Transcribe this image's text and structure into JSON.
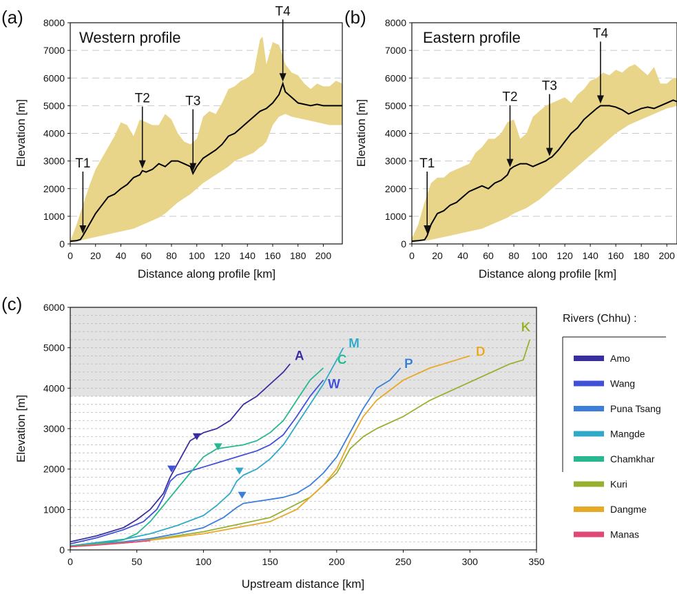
{
  "panels": {
    "a": {
      "letter": "(a)",
      "title": "Western profile",
      "xlabel": "Distance along profile [km]",
      "ylabel": "Elevation [m]",
      "xticks": [
        "0",
        "20",
        "40",
        "60",
        "80",
        "100",
        "120",
        "140",
        "160",
        "180",
        "200"
      ],
      "yticks": [
        "0",
        "1000",
        "2000",
        "3000",
        "4000",
        "5000",
        "6000",
        "7000",
        "8000"
      ]
    },
    "b": {
      "letter": "(b)",
      "title": "Eastern profile",
      "xlabel": "Distance along profile [km]",
      "ylabel": "Elevation [m]",
      "xticks": [
        "0",
        "20",
        "40",
        "60",
        "80",
        "100",
        "120",
        "140",
        "160",
        "180",
        "200"
      ],
      "yticks": [
        "0",
        "1000",
        "2000",
        "3000",
        "4000",
        "5000",
        "6000",
        "7000",
        "8000"
      ]
    },
    "c": {
      "letter": "(c)",
      "xlabel": "Upstream distance [km]",
      "ylabel": "Elevation [m]",
      "xticks": [
        "0",
        "50",
        "100",
        "150",
        "200",
        "250",
        "300",
        "350"
      ],
      "yticks": [
        "0",
        "1000",
        "2000",
        "3000",
        "4000",
        "5000",
        "6000"
      ],
      "legend_title": "Rivers (Chhu) :"
    }
  },
  "chart_data": [
    {
      "type": "area",
      "panel": "a",
      "title": "Western profile",
      "xlabel": "Distance along profile [km]",
      "ylabel": "Elevation [m]",
      "xlim": [
        0,
        215
      ],
      "ylim": [
        0,
        8000
      ],
      "fill_color": "#e8d58a",
      "line_color": "#000000",
      "envelope": {
        "x": [
          0,
          5,
          10,
          15,
          20,
          25,
          30,
          35,
          40,
          45,
          50,
          55,
          60,
          65,
          70,
          75,
          80,
          85,
          90,
          95,
          100,
          105,
          110,
          115,
          120,
          125,
          130,
          135,
          140,
          145,
          150,
          152,
          155,
          160,
          165,
          170,
          175,
          180,
          185,
          190,
          195,
          200,
          205,
          210,
          215
        ],
        "max": [
          100,
          700,
          1400,
          2100,
          2700,
          3100,
          3500,
          3900,
          4400,
          4300,
          3900,
          4500,
          4400,
          4300,
          4300,
          4700,
          4500,
          4000,
          3700,
          3600,
          3800,
          4600,
          4800,
          4700,
          5100,
          5600,
          5700,
          5900,
          6000,
          6200,
          7400,
          7500,
          6500,
          7300,
          7200,
          6500,
          6200,
          6100,
          5800,
          5600,
          5800,
          5700,
          5700,
          5900,
          5800
        ],
        "min": [
          50,
          100,
          150,
          200,
          250,
          300,
          350,
          400,
          450,
          500,
          550,
          650,
          750,
          850,
          950,
          1100,
          1300,
          1500,
          1650,
          1800,
          2000,
          2200,
          2350,
          2500,
          2650,
          2800,
          3000,
          3100,
          3200,
          3300,
          3500,
          3550,
          3700,
          4300,
          4600,
          4700,
          4600,
          4550,
          4500,
          4450,
          4400,
          4350,
          4300,
          4300,
          4300
        ]
      },
      "profile": {
        "x": [
          0,
          5,
          8,
          10,
          15,
          20,
          25,
          30,
          35,
          40,
          45,
          50,
          55,
          57,
          60,
          65,
          70,
          75,
          80,
          85,
          90,
          95,
          97,
          100,
          105,
          110,
          115,
          120,
          125,
          130,
          135,
          140,
          145,
          150,
          155,
          160,
          165,
          168,
          170,
          175,
          180,
          185,
          190,
          195,
          200,
          205,
          210,
          215
        ],
        "y": [
          100,
          120,
          160,
          300,
          700,
          1100,
          1400,
          1700,
          1800,
          2000,
          2150,
          2400,
          2500,
          2650,
          2600,
          2700,
          2900,
          2800,
          3000,
          3000,
          2900,
          2800,
          2550,
          2800,
          3100,
          3250,
          3400,
          3600,
          3900,
          4000,
          4200,
          4400,
          4600,
          4800,
          4900,
          5100,
          5400,
          5800,
          5500,
          5300,
          5100,
          5050,
          5000,
          5050,
          5000,
          5000,
          5000,
          5000
        ]
      },
      "annotations": [
        {
          "label": "T1",
          "x": 10,
          "y": 300
        },
        {
          "label": "T2",
          "x": 57,
          "y": 2650
        },
        {
          "label": "T3",
          "x": 97,
          "y": 2550
        },
        {
          "label": "T4",
          "x": 168,
          "y": 5800
        }
      ]
    },
    {
      "type": "area",
      "panel": "b",
      "title": "Eastern profile",
      "xlabel": "Distance along profile [km]",
      "ylabel": "Elevation [m]",
      "xlim": [
        0,
        208
      ],
      "ylim": [
        0,
        8000
      ],
      "fill_color": "#e8d58a",
      "line_color": "#000000",
      "envelope": {
        "x": [
          0,
          5,
          10,
          15,
          20,
          25,
          30,
          35,
          40,
          45,
          50,
          55,
          60,
          65,
          70,
          75,
          80,
          85,
          90,
          95,
          100,
          105,
          110,
          115,
          120,
          125,
          130,
          135,
          140,
          145,
          150,
          155,
          160,
          165,
          170,
          175,
          180,
          185,
          190,
          195,
          200,
          205,
          208
        ],
        "max": [
          200,
          700,
          1500,
          2200,
          2400,
          2400,
          2600,
          2700,
          2800,
          2900,
          3300,
          3500,
          3800,
          3800,
          4000,
          4400,
          4500,
          3800,
          4000,
          4600,
          4800,
          5000,
          5100,
          5200,
          5300,
          5100,
          5400,
          5600,
          5900,
          6000,
          6200,
          6100,
          6300,
          6200,
          6400,
          6500,
          6300,
          6100,
          6400,
          5800,
          5800,
          6000,
          6000
        ],
        "min": [
          50,
          100,
          120,
          150,
          200,
          250,
          300,
          350,
          400,
          450,
          500,
          550,
          650,
          750,
          850,
          950,
          1100,
          1200,
          1300,
          1450,
          1600,
          1800,
          2000,
          2200,
          2400,
          2600,
          2800,
          3000,
          3200,
          3400,
          3600,
          3800,
          4000,
          4150,
          4300,
          4400,
          4500,
          4600,
          4700,
          4800,
          4900,
          4950,
          5000
        ]
      },
      "profile": {
        "x": [
          0,
          5,
          10,
          12,
          15,
          20,
          25,
          30,
          35,
          40,
          45,
          50,
          55,
          60,
          65,
          70,
          75,
          77,
          80,
          85,
          90,
          95,
          100,
          105,
          108,
          110,
          115,
          120,
          125,
          130,
          135,
          140,
          145,
          148,
          150,
          155,
          160,
          165,
          170,
          175,
          180,
          185,
          190,
          195,
          200,
          205,
          208
        ],
        "y": [
          100,
          120,
          150,
          300,
          700,
          1100,
          1200,
          1400,
          1500,
          1700,
          1900,
          2000,
          2100,
          2000,
          2200,
          2300,
          2500,
          2700,
          2800,
          2900,
          2900,
          2800,
          2900,
          3000,
          3100,
          3150,
          3400,
          3700,
          4000,
          4200,
          4500,
          4700,
          4900,
          5000,
          5000,
          5000,
          4950,
          4850,
          4700,
          4800,
          4900,
          4950,
          4900,
          5000,
          5100,
          5200,
          5150
        ]
      },
      "annotations": [
        {
          "label": "T1",
          "x": 12,
          "y": 300
        },
        {
          "label": "T2",
          "x": 77,
          "y": 2700
        },
        {
          "label": "T3",
          "x": 108,
          "y": 3100
        },
        {
          "label": "T4",
          "x": 148,
          "y": 5000
        }
      ]
    },
    {
      "type": "line",
      "panel": "c",
      "xlabel": "Upstream distance [km]",
      "ylabel": "Elevation [m]",
      "xlim": [
        0,
        350
      ],
      "ylim": [
        0,
        6000
      ],
      "shaded_band": [
        3800,
        6000
      ],
      "legend_title": "Rivers (Chhu) :",
      "series": [
        {
          "name": "Amo",
          "label": "A",
          "color": "#3a2f9e",
          "x": [
            0,
            20,
            40,
            50,
            60,
            70,
            75,
            80,
            85,
            90,
            95,
            100,
            110,
            120,
            125,
            130,
            140,
            150,
            160,
            165
          ],
          "y": [
            200,
            350,
            550,
            750,
            1000,
            1400,
            1800,
            2100,
            2400,
            2700,
            2800,
            2900,
            3000,
            3200,
            3400,
            3600,
            3800,
            4100,
            4400,
            4600
          ],
          "knickpoint": [
            95,
            2800
          ],
          "label_pos": [
            172,
            4700
          ]
        },
        {
          "name": "Wang",
          "label": "W",
          "color": "#4050d8",
          "x": [
            0,
            20,
            40,
            55,
            65,
            70,
            75,
            80,
            90,
            100,
            110,
            120,
            130,
            140,
            150,
            160,
            170,
            180,
            185,
            190
          ],
          "y": [
            150,
            300,
            500,
            700,
            1000,
            1300,
            1700,
            1850,
            1950,
            2050,
            2150,
            2250,
            2350,
            2450,
            2600,
            2850,
            3300,
            3800,
            4000,
            4200
          ],
          "knickpoint": [
            76,
            2000
          ],
          "label_pos": [
            198,
            4000
          ]
        },
        {
          "name": "Puna Tsang",
          "label": "P",
          "color": "#3b7fd8",
          "x": [
            0,
            20,
            40,
            60,
            80,
            100,
            115,
            125,
            130,
            140,
            150,
            160,
            170,
            180,
            190,
            200,
            210,
            220,
            230,
            240,
            248
          ],
          "y": [
            100,
            150,
            200,
            280,
            400,
            550,
            800,
            1050,
            1150,
            1200,
            1250,
            1300,
            1400,
            1600,
            1900,
            2300,
            2900,
            3500,
            4000,
            4200,
            4500
          ],
          "knickpoint": [
            129,
            1350
          ],
          "label_pos": [
            254,
            4500
          ]
        },
        {
          "name": "Mangde",
          "label": "M",
          "color": "#30a8c8",
          "x": [
            0,
            20,
            40,
            60,
            80,
            100,
            110,
            120,
            125,
            130,
            140,
            150,
            160,
            170,
            180,
            190,
            200,
            205
          ],
          "y": [
            100,
            180,
            260,
            400,
            600,
            850,
            1100,
            1400,
            1700,
            1850,
            2000,
            2250,
            2600,
            3100,
            3600,
            4100,
            4700,
            5000
          ],
          "knickpoint": [
            127,
            1950
          ],
          "label_pos": [
            213,
            5000
          ]
        },
        {
          "name": "Chamkhar",
          "label": "C",
          "color": "#28b890",
          "x": [
            0,
            20,
            40,
            50,
            60,
            70,
            80,
            90,
            100,
            110,
            120,
            130,
            140,
            150,
            160,
            170,
            180,
            190
          ],
          "y": [
            100,
            150,
            250,
            400,
            700,
            1100,
            1500,
            1900,
            2300,
            2500,
            2550,
            2600,
            2700,
            2900,
            3200,
            3700,
            4200,
            4500
          ],
          "knickpoint": [
            111,
            2550
          ],
          "label_pos": [
            204,
            4600
          ]
        },
        {
          "name": "Kuri",
          "label": "K",
          "color": "#98b030",
          "x": [
            0,
            50,
            100,
            150,
            180,
            200,
            210,
            220,
            230,
            250,
            270,
            290,
            310,
            330,
            340,
            345
          ],
          "y": [
            80,
            200,
            450,
            800,
            1300,
            1900,
            2500,
            2800,
            3000,
            3300,
            3700,
            4000,
            4300,
            4600,
            4700,
            5200
          ],
          "knickpoint": null,
          "label_pos": [
            342,
            5400
          ]
        },
        {
          "name": "Dangme",
          "label": "D",
          "color": "#e8a828",
          "x": [
            0,
            50,
            100,
            150,
            170,
            180,
            190,
            200,
            210,
            220,
            230,
            250,
            270,
            290,
            300
          ],
          "y": [
            80,
            200,
            400,
            700,
            1000,
            1300,
            1600,
            2000,
            2700,
            3300,
            3700,
            4200,
            4500,
            4700,
            4800
          ],
          "knickpoint": null,
          "label_pos": [
            308,
            4800
          ]
        },
        {
          "name": "Manas",
          "label": "",
          "color": "#e04878",
          "x": [
            0,
            20,
            40,
            60
          ],
          "y": [
            80,
            120,
            170,
            230
          ],
          "knickpoint": null,
          "label_pos": null
        }
      ]
    }
  ]
}
